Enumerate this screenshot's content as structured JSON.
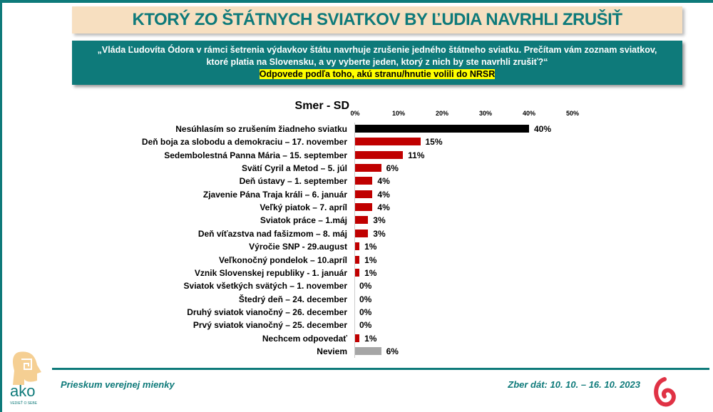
{
  "header": {
    "title": "KTORÝ ZO ŠTÁTNYCH SVIATKOV BY ĽUDIA NAVRHLI ZRUŠIŤ"
  },
  "question": {
    "text": "„Vláda Ľudovíta Ódora v rámci šetrenia výdavkov štátu navrhuje zrušenie jedného štátneho sviatku. Prečítam vám zoznam sviatkov,  ktoré platia na Slovensku, a vy vyberte jeden,  ktorý z nich by ste navrhli zrušiť?“",
    "note": "Odpovede podľa toho, akú stranu/hnutie volili do NRSR"
  },
  "chart_data": {
    "type": "bar",
    "orientation": "horizontal",
    "title": "Smer - SD",
    "xlim": [
      0,
      50
    ],
    "xticks": [
      "0%",
      "10%",
      "20%",
      "30%",
      "40%",
      "50%"
    ],
    "categories": [
      "Nesúhlasím so zrušením žiadneho sviatku",
      "Deň boja za slobodu a demokraciu – 17. november",
      "Sedembolestná Panna Mária – 15. september",
      "Svätí Cyril a Metod – 5. júl",
      "Deň ústavy – 1. september",
      "Zjavenie Pána Traja králi – 6. január",
      "Veľký piatok – 7. apríl",
      "Sviatok práce – 1.máj",
      "Deň víťazstva nad fašizmom – 8. máj",
      "Výročie SNP - 29.august",
      "Veľkonočný pondelok – 10.apríl",
      "Vznik Slovenskej republiky - 1. január",
      "Sviatok všetkých svätých – 1. november",
      "Štedrý deň – 24. december",
      "Druhý sviatok vianočný – 26. december",
      "Prvý sviatok vianočný – 25. december",
      "Nechcem odpovedať",
      "Neviem"
    ],
    "values": [
      40,
      15,
      11,
      6,
      4,
      4,
      4,
      3,
      3,
      1,
      1,
      1,
      0,
      0,
      0,
      0,
      1,
      6
    ],
    "labels": [
      "40%",
      "15%",
      "11%",
      "6%",
      "4%",
      "4%",
      "4%",
      "3%",
      "3%",
      "1%",
      "1%",
      "1%",
      "0%",
      "0%",
      "0%",
      "0%",
      "1%",
      "6%"
    ],
    "colors": [
      "#000000",
      "#c00000",
      "#c00000",
      "#c00000",
      "#c00000",
      "#c00000",
      "#c00000",
      "#c00000",
      "#c00000",
      "#c00000",
      "#c00000",
      "#c00000",
      "#c00000",
      "#c00000",
      "#c00000",
      "#c00000",
      "#c00000",
      "#a6a6a6"
    ]
  },
  "footer": {
    "left": "Prieskum verejnej mienky",
    "right": "Zber dát: 10. 10. – 16. 10. 2023",
    "logo_text": "ako",
    "logo_tagline": "VEDIEŤ O SEBE"
  }
}
